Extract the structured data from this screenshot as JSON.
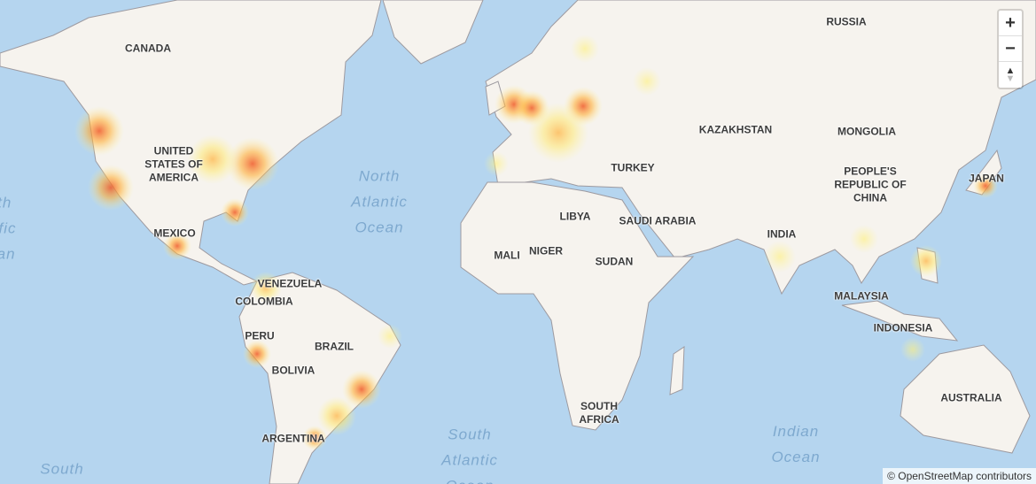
{
  "map": {
    "countries": [
      "RUSSIA",
      "CANADA",
      "UNITED\nSTATES OF\nAMERICA",
      "MEXICO",
      "KAZAKHSTAN",
      "MONGOLIA",
      "TURKEY",
      "PEOPLE'S\nREPUBLIC OF\nCHINA",
      "JAPAN",
      "LIBYA",
      "SAUDI ARABIA",
      "INDIA",
      "MALI",
      "NIGER",
      "SUDAN",
      "VENEZUELA",
      "COLOMBIA",
      "MALAYSIA",
      "PERU",
      "BRAZIL",
      "INDONESIA",
      "BOLIVIA",
      "AUSTRALIA",
      "SOUTH\nAFRICA",
      "ARGENTINA"
    ],
    "oceans": [
      "North\nAtlantic\nOcean",
      "South\nAtlantic\nOcean",
      "Indian\nOcean",
      "South",
      "North\nPacific\nOcean"
    ],
    "heat_colors": {
      "low": "#fff59a",
      "mid": "#ffc040",
      "high": "#f05a28"
    }
  },
  "controls": {
    "zoom_in": "+",
    "zoom_out": "−",
    "reset_north": "▲"
  },
  "attribution": "© OpenStreetMap contributors"
}
